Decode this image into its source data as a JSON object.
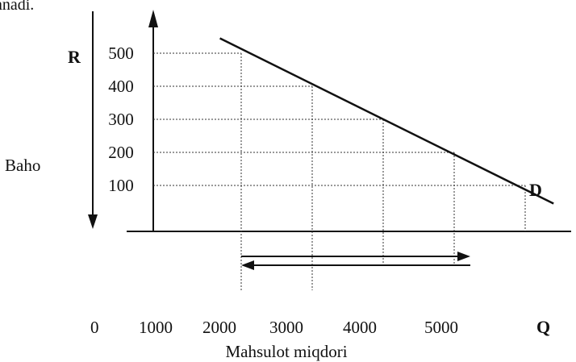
{
  "header_fragment": "anadi.",
  "chart_data": {
    "type": "line",
    "price_letter": "R",
    "ylabel": "Baho",
    "quantity_letter": "Q",
    "xlabel": "Mahsulot miqdori",
    "origin_label": "0",
    "curve_label": "D",
    "y_ticks": [
      "500",
      "400",
      "300",
      "200",
      "100"
    ],
    "x_ticks": [
      "1000",
      "2000",
      "3000",
      "4000",
      "5000"
    ],
    "points": [
      {
        "q": 2000,
        "p": 500
      },
      {
        "q": 3000,
        "p": 400
      },
      {
        "q": 4000,
        "p": 300
      },
      {
        "q": 5000,
        "p": 200
      },
      {
        "q": 6000,
        "p": 100
      }
    ],
    "demand_line": {
      "from": {
        "q": 1700,
        "p": 545
      },
      "to": {
        "q": 6400,
        "p": 45
      }
    },
    "arrows": [
      {
        "direction": "right",
        "from_q": 2000,
        "to_q": 5000
      },
      {
        "direction": "left",
        "from_q": 5000,
        "to_q": 2000
      }
    ],
    "grid": "dotted guide lines to each point"
  }
}
